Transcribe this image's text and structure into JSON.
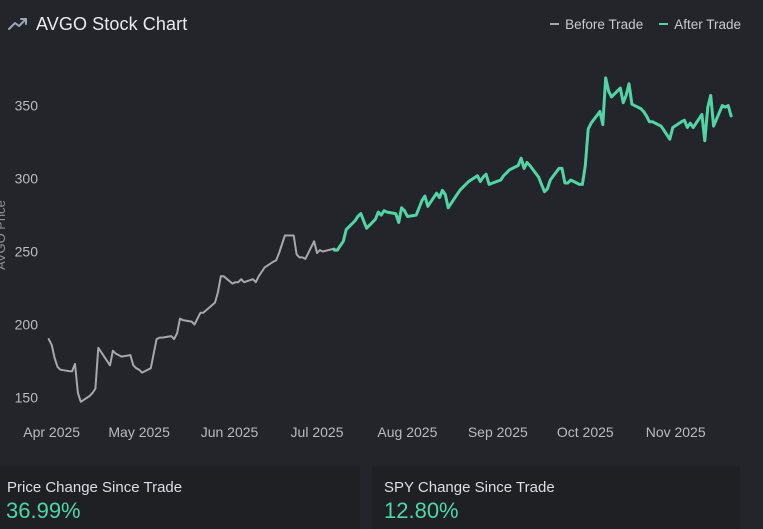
{
  "header": {
    "title": "AVGO Stock Chart",
    "icon": "trending-up-icon"
  },
  "legend": {
    "before_label": "Before Trade",
    "after_label": "After Trade"
  },
  "colors": {
    "background": "#23252a",
    "card_background": "#1e2024",
    "before": "#a8a7ab",
    "after": "#52d4a6",
    "value_text": "#4fd6a8"
  },
  "chart_data": {
    "type": "line",
    "ylabel": "AVGO Price",
    "ylim": [
      140,
      395
    ],
    "yticks": [
      150,
      200,
      250,
      300,
      350
    ],
    "xlim": [
      "2025-03-28",
      "2025-11-21"
    ],
    "xticks": [
      {
        "date": "2025-04-01",
        "label": "Apr 2025"
      },
      {
        "date": "2025-05-01",
        "label": "May 2025"
      },
      {
        "date": "2025-06-01",
        "label": "Jun 2025"
      },
      {
        "date": "2025-07-01",
        "label": "Jul 2025"
      },
      {
        "date": "2025-08-01",
        "label": "Aug 2025"
      },
      {
        "date": "2025-09-01",
        "label": "Sep 2025"
      },
      {
        "date": "2025-10-01",
        "label": "Oct 2025"
      },
      {
        "date": "2025-11-01",
        "label": "Nov 2025"
      }
    ],
    "grid": false,
    "legend_position": "top-right",
    "series": [
      {
        "name": "Before Trade",
        "color": "#a8a7ab",
        "points": [
          [
            "2025-03-31",
            190
          ],
          [
            "2025-04-01",
            186
          ],
          [
            "2025-04-02",
            177
          ],
          [
            "2025-04-03",
            171
          ],
          [
            "2025-04-04",
            169
          ],
          [
            "2025-04-07",
            168
          ],
          [
            "2025-04-08",
            168
          ],
          [
            "2025-04-09",
            173
          ],
          [
            "2025-04-10",
            153
          ],
          [
            "2025-04-11",
            147
          ],
          [
            "2025-04-14",
            151
          ],
          [
            "2025-04-15",
            153
          ],
          [
            "2025-04-16",
            156
          ],
          [
            "2025-04-17",
            184
          ],
          [
            "2025-04-21",
            172
          ],
          [
            "2025-04-22",
            182
          ],
          [
            "2025-04-23",
            180
          ],
          [
            "2025-04-24",
            179
          ],
          [
            "2025-04-25",
            178
          ],
          [
            "2025-04-28",
            179
          ],
          [
            "2025-04-29",
            172
          ],
          [
            "2025-04-30",
            170
          ],
          [
            "2025-05-01",
            169
          ],
          [
            "2025-05-02",
            167
          ],
          [
            "2025-05-05",
            170
          ],
          [
            "2025-05-06",
            180
          ],
          [
            "2025-05-07",
            190
          ],
          [
            "2025-05-08",
            191
          ],
          [
            "2025-05-09",
            191
          ],
          [
            "2025-05-12",
            192
          ],
          [
            "2025-05-13",
            190
          ],
          [
            "2025-05-14",
            194
          ],
          [
            "2025-05-15",
            204
          ],
          [
            "2025-05-16",
            203
          ],
          [
            "2025-05-19",
            202
          ],
          [
            "2025-05-20",
            200
          ],
          [
            "2025-05-21",
            204
          ],
          [
            "2025-05-22",
            208
          ],
          [
            "2025-05-23",
            208
          ],
          [
            "2025-05-27",
            215
          ],
          [
            "2025-05-28",
            222
          ],
          [
            "2025-05-29",
            233
          ],
          [
            "2025-05-30",
            233
          ],
          [
            "2025-06-02",
            228
          ],
          [
            "2025-06-03",
            229
          ],
          [
            "2025-06-04",
            229
          ],
          [
            "2025-06-05",
            231
          ],
          [
            "2025-06-06",
            229
          ],
          [
            "2025-06-09",
            231
          ],
          [
            "2025-06-10",
            229
          ],
          [
            "2025-06-11",
            233
          ],
          [
            "2025-06-12",
            236
          ],
          [
            "2025-06-13",
            239
          ],
          [
            "2025-06-16",
            243
          ],
          [
            "2025-06-17",
            244
          ],
          [
            "2025-06-18",
            249
          ],
          [
            "2025-06-20",
            261
          ],
          [
            "2025-06-23",
            261
          ],
          [
            "2025-06-24",
            248
          ],
          [
            "2025-06-25",
            246
          ],
          [
            "2025-06-26",
            246
          ],
          [
            "2025-06-27",
            245
          ],
          [
            "2025-06-30",
            257
          ],
          [
            "2025-07-01",
            249
          ],
          [
            "2025-07-02",
            251
          ],
          [
            "2025-07-03",
            250
          ],
          [
            "2025-07-07",
            252
          ]
        ]
      },
      {
        "name": "After Trade",
        "color": "#52d4a6",
        "points": [
          [
            "2025-07-07",
            251
          ],
          [
            "2025-07-08",
            251
          ],
          [
            "2025-07-09",
            254
          ],
          [
            "2025-07-10",
            257
          ],
          [
            "2025-07-11",
            265
          ],
          [
            "2025-07-14",
            271
          ],
          [
            "2025-07-15",
            274
          ],
          [
            "2025-07-16",
            276
          ],
          [
            "2025-07-17",
            271
          ],
          [
            "2025-07-18",
            266
          ],
          [
            "2025-07-21",
            272
          ],
          [
            "2025-07-22",
            277
          ],
          [
            "2025-07-23",
            275
          ],
          [
            "2025-07-24",
            278
          ],
          [
            "2025-07-25",
            277
          ],
          [
            "2025-07-28",
            276
          ],
          [
            "2025-07-29",
            270
          ],
          [
            "2025-07-30",
            280
          ],
          [
            "2025-07-31",
            278
          ],
          [
            "2025-08-01",
            274
          ],
          [
            "2025-08-04",
            275
          ],
          [
            "2025-08-05",
            280
          ],
          [
            "2025-08-06",
            285
          ],
          [
            "2025-08-07",
            288
          ],
          [
            "2025-08-08",
            281
          ],
          [
            "2025-08-11",
            290
          ],
          [
            "2025-08-12",
            287
          ],
          [
            "2025-08-13",
            292
          ],
          [
            "2025-08-14",
            289
          ],
          [
            "2025-08-15",
            280
          ],
          [
            "2025-08-18",
            289
          ],
          [
            "2025-08-19",
            292
          ],
          [
            "2025-08-20",
            294
          ],
          [
            "2025-08-21",
            296
          ],
          [
            "2025-08-22",
            298
          ],
          [
            "2025-08-25",
            302
          ],
          [
            "2025-08-26",
            298
          ],
          [
            "2025-08-27",
            301
          ],
          [
            "2025-08-28",
            303
          ],
          [
            "2025-08-29",
            296
          ],
          [
            "2025-09-02",
            299
          ],
          [
            "2025-09-03",
            302
          ],
          [
            "2025-09-04",
            304
          ],
          [
            "2025-09-05",
            306
          ],
          [
            "2025-09-08",
            309
          ],
          [
            "2025-09-09",
            314
          ],
          [
            "2025-09-10",
            307
          ],
          [
            "2025-09-11",
            311
          ],
          [
            "2025-09-12",
            309
          ],
          [
            "2025-09-15",
            301
          ],
          [
            "2025-09-16",
            296
          ],
          [
            "2025-09-17",
            291
          ],
          [
            "2025-09-18",
            293
          ],
          [
            "2025-09-19",
            299
          ],
          [
            "2025-09-22",
            307
          ],
          [
            "2025-09-23",
            307
          ],
          [
            "2025-09-24",
            297
          ],
          [
            "2025-09-25",
            297
          ],
          [
            "2025-09-26",
            299
          ],
          [
            "2025-09-29",
            296
          ],
          [
            "2025-09-30",
            296
          ],
          [
            "2025-10-01",
            309
          ],
          [
            "2025-10-02",
            334
          ],
          [
            "2025-10-03",
            338
          ],
          [
            "2025-10-06",
            346
          ],
          [
            "2025-10-07",
            337
          ],
          [
            "2025-10-08",
            369
          ],
          [
            "2025-10-09",
            360
          ],
          [
            "2025-10-10",
            356
          ],
          [
            "2025-10-13",
            362
          ],
          [
            "2025-10-14",
            352
          ],
          [
            "2025-10-15",
            357
          ],
          [
            "2025-10-16",
            365
          ],
          [
            "2025-10-17",
            351
          ],
          [
            "2025-10-20",
            348
          ],
          [
            "2025-10-21",
            346
          ],
          [
            "2025-10-22",
            343
          ],
          [
            "2025-10-23",
            339
          ],
          [
            "2025-10-24",
            339
          ],
          [
            "2025-10-27",
            336
          ],
          [
            "2025-10-28",
            333
          ],
          [
            "2025-10-29",
            330
          ],
          [
            "2025-10-30",
            327
          ],
          [
            "2025-10-31",
            335
          ],
          [
            "2025-11-03",
            339
          ],
          [
            "2025-11-04",
            340
          ],
          [
            "2025-11-05",
            335
          ],
          [
            "2025-11-06",
            338
          ],
          [
            "2025-11-07",
            335
          ],
          [
            "2025-11-10",
            344
          ],
          [
            "2025-11-11",
            326
          ],
          [
            "2025-11-12",
            349
          ],
          [
            "2025-11-13",
            357
          ],
          [
            "2025-11-14",
            336
          ],
          [
            "2025-11-17",
            350
          ],
          [
            "2025-11-18",
            349
          ],
          [
            "2025-11-19",
            350
          ],
          [
            "2025-11-20",
            343
          ]
        ]
      }
    ]
  },
  "cards": [
    {
      "label": "Price Change Since Trade",
      "value": "36.99%"
    },
    {
      "label": "SPY Change Since Trade",
      "value": "12.80%"
    }
  ]
}
